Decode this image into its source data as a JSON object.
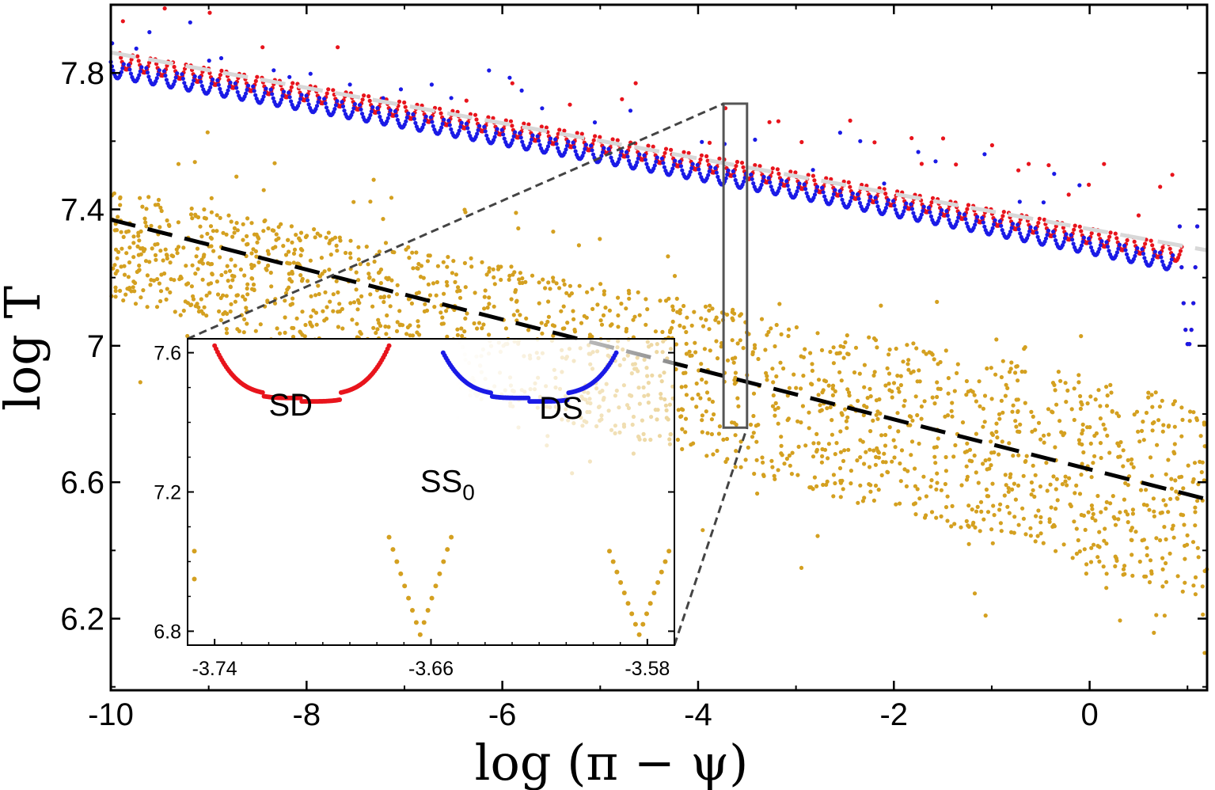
{
  "chart_data": {
    "type": "scatter",
    "xlabel": "log (π − ψ)",
    "ylabel": "log T",
    "xlim": [
      -10,
      1.2
    ],
    "ylim": [
      5.99,
      8.0
    ],
    "xticks": [
      -10,
      -8,
      -6,
      -4,
      -2,
      0
    ],
    "xtick_labels": [
      "-10",
      "-8",
      "-6",
      "-4",
      "-2",
      "0"
    ],
    "yticks": [
      6.2,
      6.6,
      7,
      7.4,
      7.8
    ],
    "ytick_labels": [
      "6.2",
      "6.6",
      "7",
      "7.4",
      "7.8"
    ],
    "colors": {
      "sd": "#e8141c",
      "ds": "#1a1ae6",
      "ss0": "#d4a020",
      "fit_upper": "#d8d8d8",
      "fit_lower": "#000000",
      "zoom": "#555555"
    },
    "series": [
      {
        "name": "SD",
        "color": "#e8141c",
        "band": {
          "x_start": -10,
          "x_end": 0.9,
          "y_start": 7.84,
          "y_end": 7.3,
          "width": 0.09
        }
      },
      {
        "name": "DS",
        "color": "#1a1ae6",
        "band": {
          "x_start": -10,
          "x_end": 0.9,
          "y_start": 7.81,
          "y_end": 7.27,
          "width": 0.09
        }
      },
      {
        "name": "SS0",
        "color": "#d4a020",
        "band": {
          "x_start": -10,
          "x_end": 1.2,
          "y_start": 7.3,
          "y_end": 6.55,
          "width": 0.45
        }
      }
    ],
    "fit_lines": [
      {
        "name": "upper-fit",
        "color": "#d8d8d8",
        "x": [
          -10,
          1.2
        ],
        "y": [
          7.86,
          7.28
        ]
      },
      {
        "name": "lower-fit",
        "color": "#000000",
        "x": [
          -10,
          1.2
        ],
        "y": [
          7.37,
          6.55
        ]
      }
    ],
    "zoom_box": {
      "x": [
        -3.74,
        -3.5
      ],
      "y": [
        6.76,
        7.71
      ]
    },
    "inset": {
      "xlim": [
        -3.75,
        -3.57
      ],
      "ylim": [
        6.76,
        7.64
      ],
      "xticks": [
        -3.74,
        -3.66,
        -3.58
      ],
      "xtick_labels": [
        "-3.74",
        "-3.66",
        "-3.58"
      ],
      "yticks": [
        6.8,
        7.2,
        7.6
      ],
      "ytick_labels": [
        "6.8",
        "7.2",
        "7.6"
      ],
      "annotations": [
        {
          "text": "SD",
          "x": -3.72,
          "y": 7.42
        },
        {
          "text": "DS",
          "x": -3.62,
          "y": 7.41
        },
        {
          "text": "SS",
          "sub": "0",
          "x": -3.664,
          "y": 7.2
        }
      ],
      "sd_curve": {
        "x": [
          -3.74,
          -3.6755
        ],
        "y_edge": 7.62,
        "y_min": 7.48
      },
      "ds_curve": {
        "x": [
          -3.6555,
          -3.5915
        ],
        "y_edge": 7.6,
        "y_min": 7.48
      },
      "ss0_dips": [
        {
          "x_left": -3.6755,
          "x_right": -3.6525,
          "x_center": -3.664,
          "y_top": 7.07,
          "y_bottom": 6.79
        },
        {
          "x_left": -3.594,
          "x_right": -3.572,
          "x_center": -3.583,
          "y_top": 7.03,
          "y_bottom": 6.79
        }
      ]
    }
  }
}
